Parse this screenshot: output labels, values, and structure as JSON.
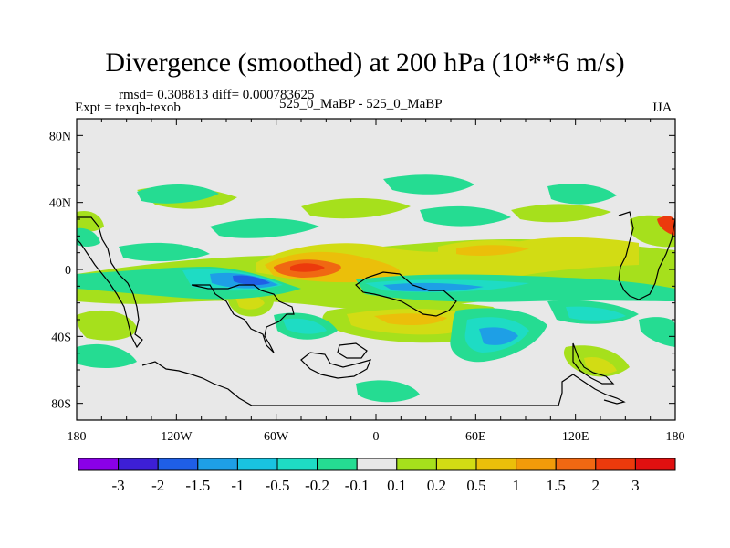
{
  "chart_data": {
    "type": "heatmap",
    "title": "Divergence (smoothed) at 200 hPa (10**6 m/s)",
    "stats": "rmsd= 0.308813 diff= 0.000783625",
    "experiment": "Expt = texqb-texob",
    "case": "525_0_MaBP - 525_0_MaBP",
    "season": "JJA",
    "x_ticks": [
      "180",
      "120W",
      "60W",
      "0",
      "60E",
      "120E",
      "180"
    ],
    "y_ticks": [
      "80N",
      "40N",
      "0",
      "40S",
      "80S"
    ],
    "xlim": [
      -180,
      180
    ],
    "ylim": [
      -90,
      90
    ],
    "colorbar": {
      "labels": [
        "-3",
        "-2",
        "-1.5",
        "-1",
        "-0.5",
        "-0.2",
        "-0.1",
        "0.1",
        "0.2",
        "0.5",
        "1",
        "1.5",
        "2",
        "3"
      ],
      "colors": [
        "#8a00e8",
        "#3d1fd6",
        "#1f5fe6",
        "#1e9fe6",
        "#19c3e0",
        "#1edcc4",
        "#25dc92",
        "#e8e8e8",
        "#a6e01c",
        "#d2dc14",
        "#ebbf0a",
        "#f29b0a",
        "#f06812",
        "#ec3a0c",
        "#e01010"
      ]
    }
  }
}
